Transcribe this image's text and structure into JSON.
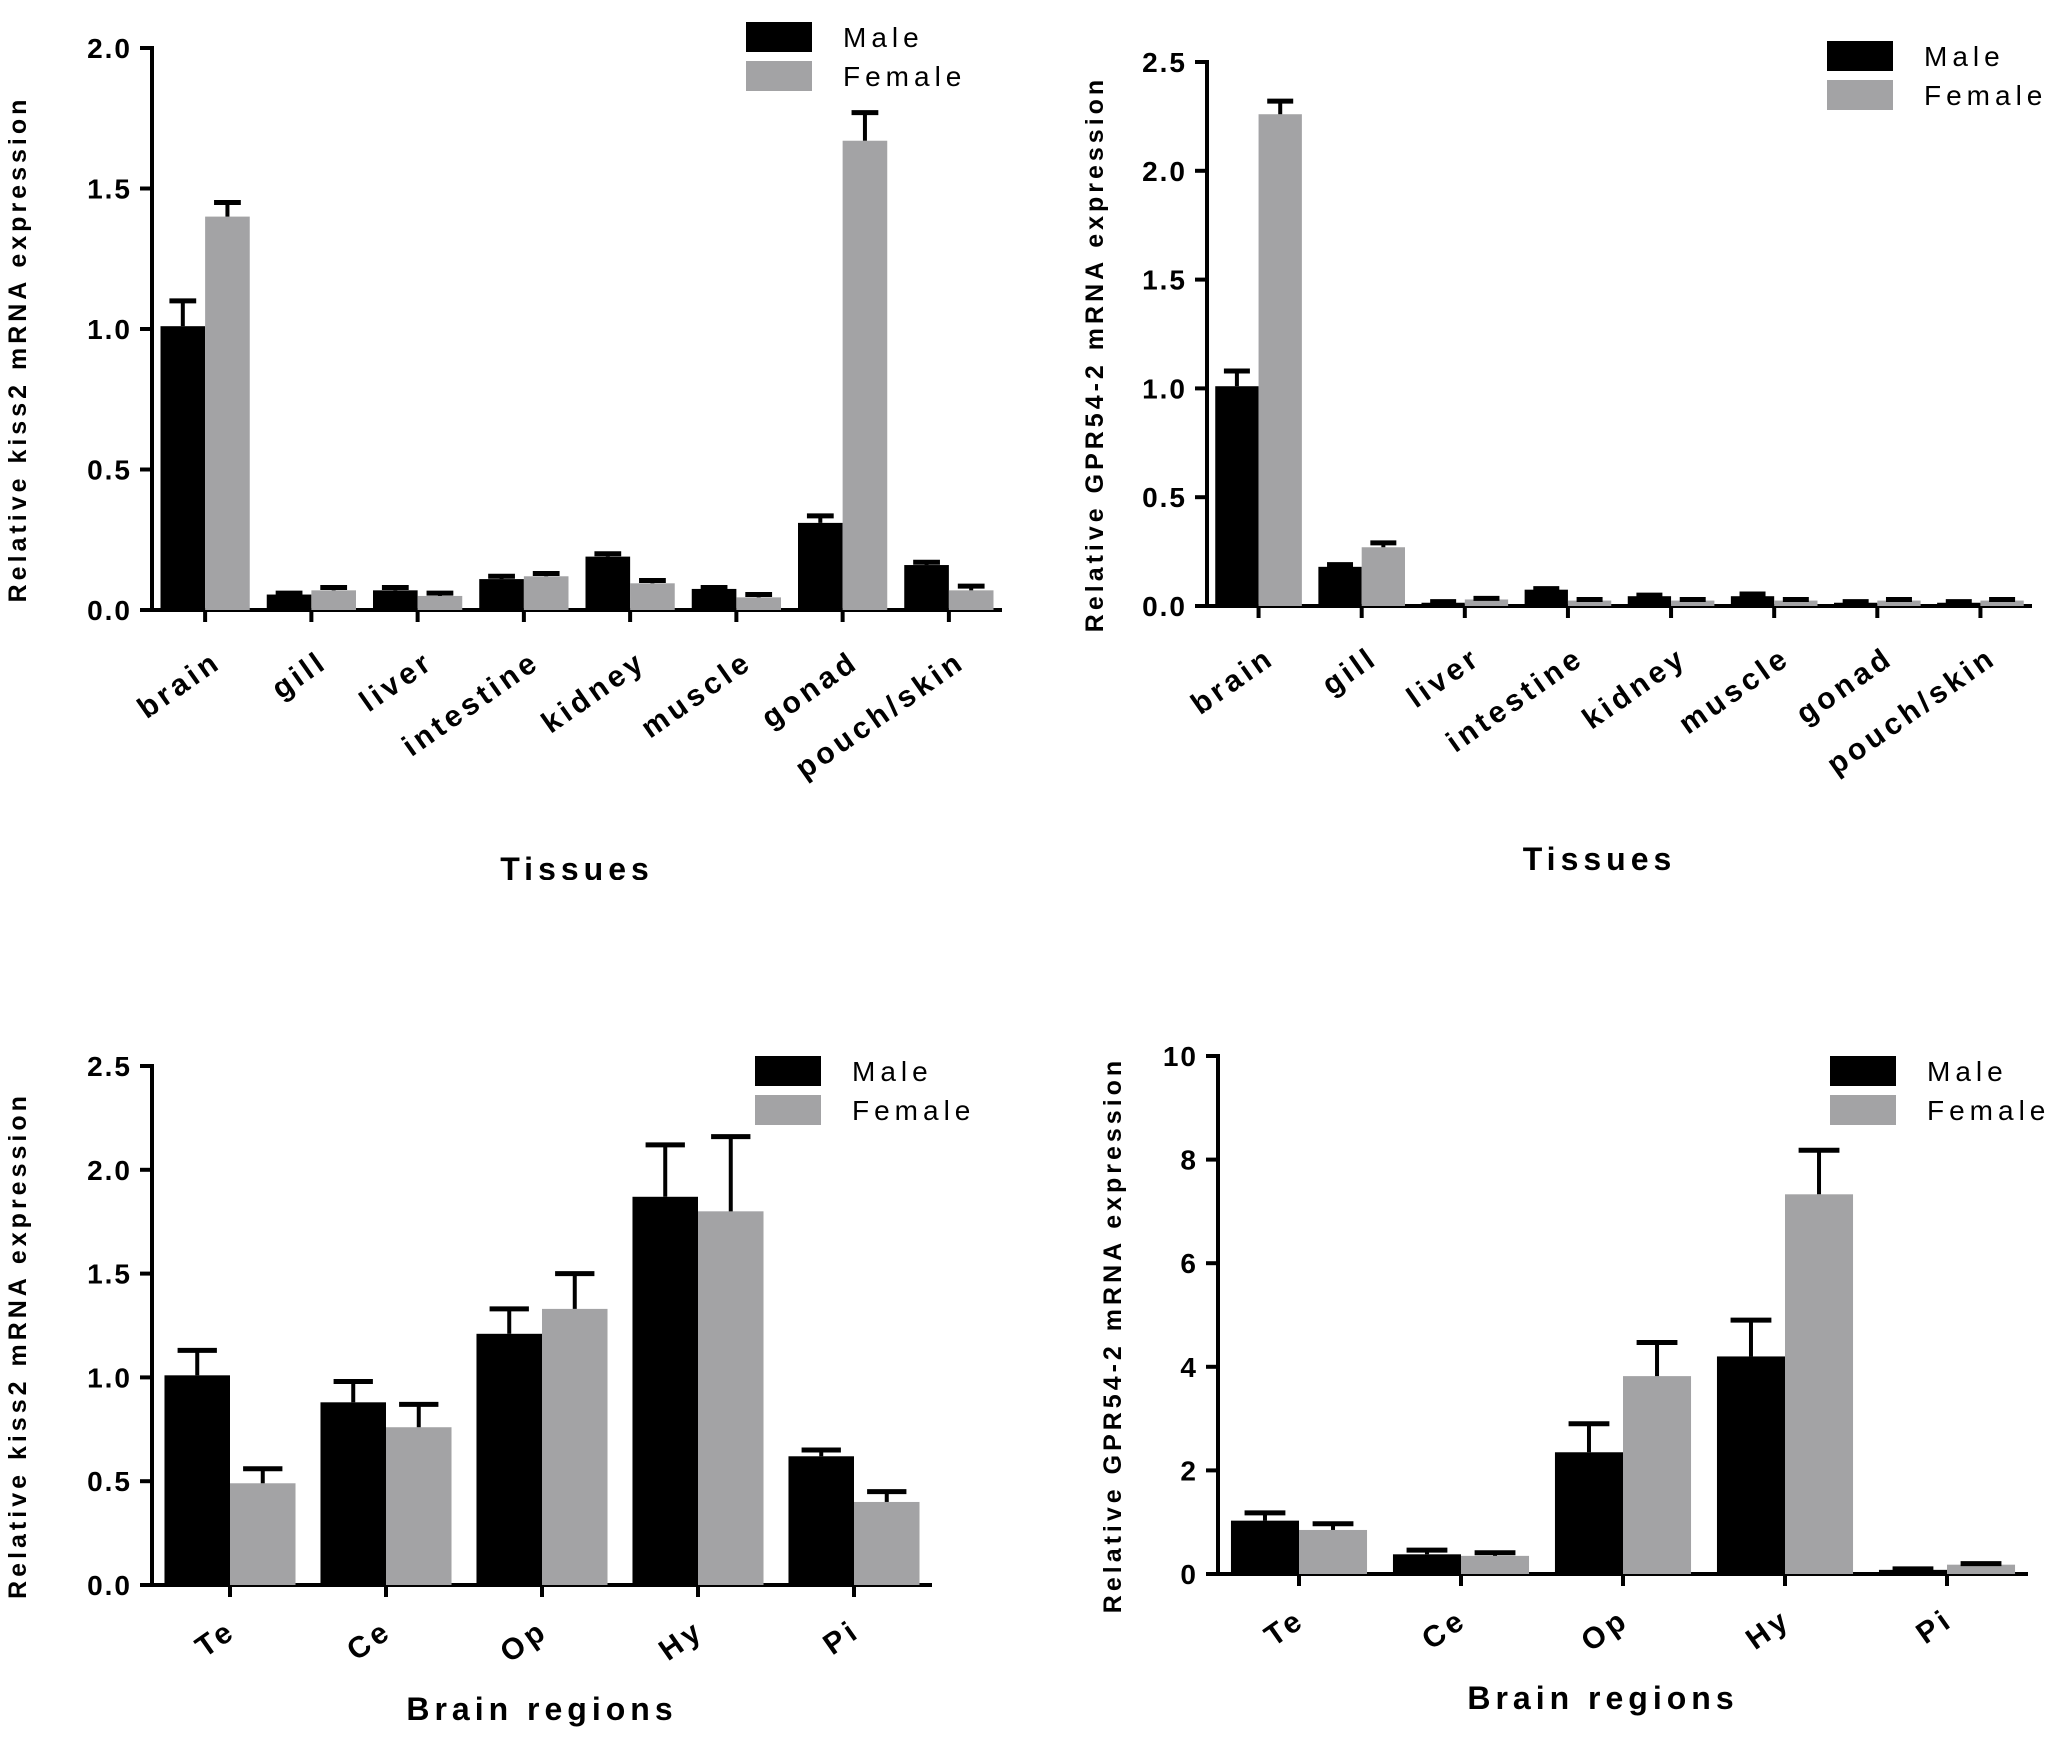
{
  "colors": {
    "male": "#000000",
    "female": "#a3a3a5",
    "axis": "#000000"
  },
  "chart_data": [
    {
      "type": "bar",
      "id": "kiss2-tissues",
      "title": "",
      "xlabel": "Tissues",
      "ylabel": "Relative kiss2 mRNA expression",
      "ylim": [
        0,
        2.0
      ],
      "yticks": [
        0.0,
        0.5,
        1.0,
        1.5,
        2.0
      ],
      "ytick_labels": [
        "0.0",
        "0.5",
        "1.0",
        "1.5",
        "2.0"
      ],
      "legend": "top-right",
      "categories": [
        "brain",
        "gill",
        "liver",
        "intestine",
        "kidney",
        "muscle",
        "gonad",
        "pouch/skin"
      ],
      "series": [
        {
          "name": "Male",
          "values": [
            1.01,
            0.055,
            0.07,
            0.11,
            0.19,
            0.075,
            0.31,
            0.16
          ],
          "errors": [
            0.09,
            0.005,
            0.01,
            0.01,
            0.01,
            0.005,
            0.025,
            0.01
          ]
        },
        {
          "name": "Female",
          "values": [
            1.4,
            0.07,
            0.05,
            0.12,
            0.095,
            0.045,
            1.67,
            0.07
          ],
          "errors": [
            0.05,
            0.01,
            0.01,
            0.01,
            0.01,
            0.01,
            0.1,
            0.015
          ]
        }
      ]
    },
    {
      "type": "bar",
      "id": "gpr54-tissues",
      "title": "",
      "xlabel": "Tissues",
      "ylabel": "Relative GPR54-2 mRNA expression",
      "ylim": [
        0,
        2.5
      ],
      "yticks": [
        0.0,
        0.5,
        1.0,
        1.5,
        2.0,
        2.5
      ],
      "ytick_labels": [
        "0.0",
        "0.5",
        "1.0",
        "1.5",
        "2.0",
        "2.5"
      ],
      "legend": "top-right",
      "categories": [
        "brain",
        "gill",
        "liver",
        "intestine",
        "kidney",
        "muscle",
        "gonad",
        "pouch/skin"
      ],
      "series": [
        {
          "name": "Male",
          "values": [
            1.01,
            0.18,
            0.015,
            0.075,
            0.045,
            0.045,
            0.015,
            0.015
          ],
          "errors": [
            0.07,
            0.01,
            0.005,
            0.005,
            0.005,
            0.01,
            0.005,
            0.005
          ]
        },
        {
          "name": "Female",
          "values": [
            2.26,
            0.27,
            0.03,
            0.025,
            0.025,
            0.025,
            0.025,
            0.025
          ],
          "errors": [
            0.06,
            0.02,
            0.005,
            0.005,
            0.005,
            0.005,
            0.005,
            0.005
          ]
        }
      ]
    },
    {
      "type": "bar",
      "id": "kiss2-brain",
      "title": "",
      "xlabel": "Brain regions",
      "ylabel": "Relative kiss2 mRNA expression",
      "ylim": [
        0,
        2.5
      ],
      "yticks": [
        0.0,
        0.5,
        1.0,
        1.5,
        2.0,
        2.5
      ],
      "ytick_labels": [
        "0.0",
        "0.5",
        "1.0",
        "1.5",
        "2.0",
        "2.5"
      ],
      "legend": "top-right",
      "categories": [
        "Te",
        "Ce",
        "Op",
        "Hy",
        "Pi"
      ],
      "series": [
        {
          "name": "Male",
          "values": [
            1.01,
            0.88,
            1.21,
            1.87,
            0.62
          ],
          "errors": [
            0.12,
            0.1,
            0.12,
            0.25,
            0.03
          ]
        },
        {
          "name": "Female",
          "values": [
            0.49,
            0.76,
            1.33,
            1.8,
            0.4
          ],
          "errors": [
            0.07,
            0.11,
            0.17,
            0.36,
            0.05
          ]
        }
      ]
    },
    {
      "type": "bar",
      "id": "gpr54-brain",
      "title": "",
      "xlabel": "Brain regions",
      "ylabel": "Relative GPR54-2 mRNA expression",
      "ylim": [
        0,
        10
      ],
      "yticks": [
        0,
        2,
        4,
        6,
        8,
        10
      ],
      "ytick_labels": [
        "0",
        "2",
        "4",
        "6",
        "8",
        "10"
      ],
      "legend": "top-right",
      "categories": [
        "Te",
        "Ce",
        "Op",
        "Hy",
        "Pi"
      ],
      "series": [
        {
          "name": "Male",
          "values": [
            1.03,
            0.38,
            2.35,
            4.2,
            0.08
          ],
          "errors": [
            0.15,
            0.08,
            0.55,
            0.7,
            0.02
          ]
        },
        {
          "name": "Female",
          "values": [
            0.85,
            0.35,
            3.82,
            7.33,
            0.18
          ],
          "errors": [
            0.12,
            0.06,
            0.65,
            0.85,
            0.02
          ]
        }
      ]
    }
  ]
}
